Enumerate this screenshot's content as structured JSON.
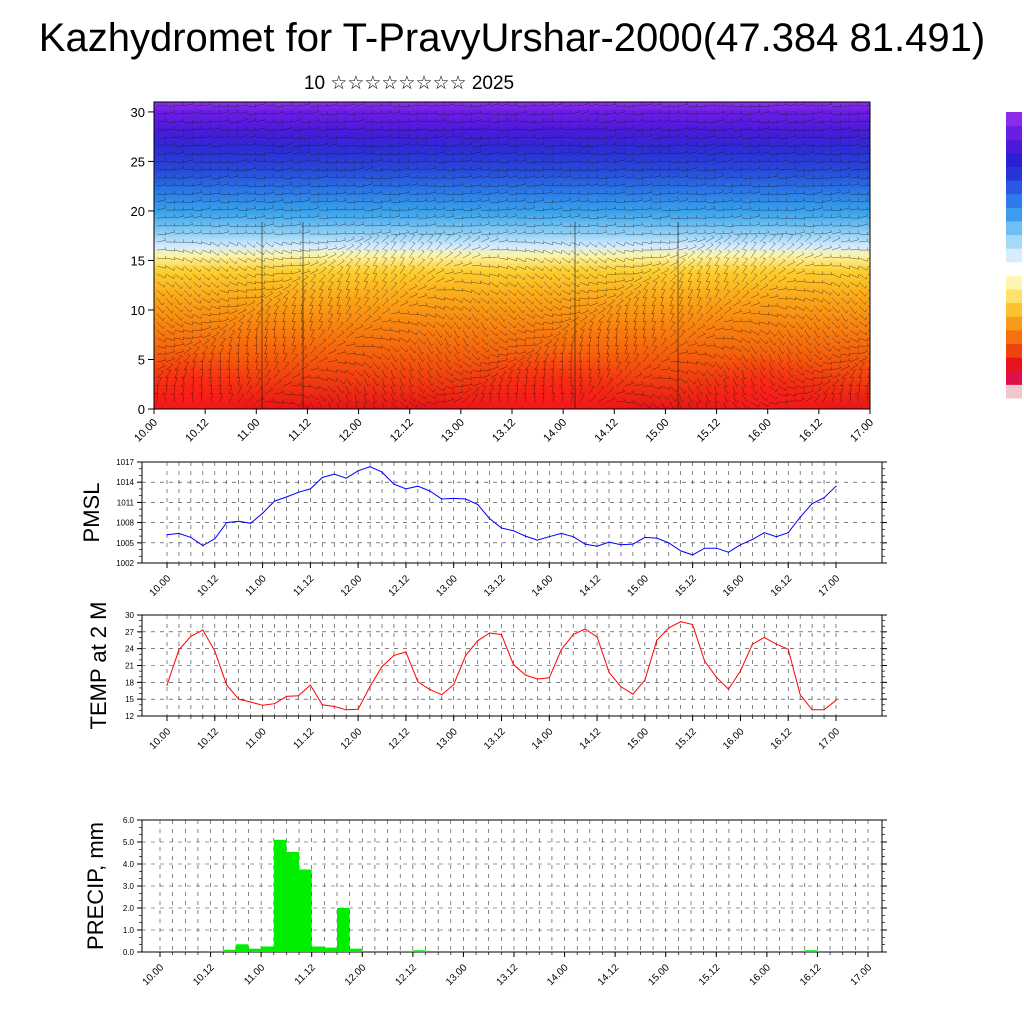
{
  "header": {
    "title": "Kazhydromet for T-PravyUrshar-2000(47.384 81.491)",
    "subtitle": "10 ☆☆☆☆☆☆☆☆ 2025"
  },
  "chart_data": [
    {
      "type": "heatmap",
      "name": "vertical-profile",
      "x_tick_labels": [
        "10.00",
        "10.12",
        "11.00",
        "11.12",
        "12.00",
        "12.12",
        "13.00",
        "13.12",
        "14.00",
        "14.12",
        "15.00",
        "15.12",
        "16.00",
        "16.12",
        "17.00"
      ],
      "y_tick_labels": [
        "0",
        "5",
        "10",
        "15",
        "20",
        "25",
        "30"
      ],
      "ylim": [
        0,
        31
      ],
      "colormap": [
        "#e8141a",
        "#f23a0f",
        "#f8650b",
        "#fa8c10",
        "#fbb01c",
        "#fbd632",
        "#fdf6a0",
        "#d6ecff",
        "#7cc9f2",
        "#34a3ec",
        "#2a78e6",
        "#2846d9",
        "#3423d6",
        "#5818e2",
        "#7a1fe8",
        "#ffffff"
      ],
      "colorbar": [
        "#8c2be8",
        "#6a1de3",
        "#4d1ad8",
        "#2a1fd0",
        "#2635d8",
        "#2a58e2",
        "#2e7ae8",
        "#3e9cef",
        "#6ec0f4",
        "#a6d9f8",
        "#d6edfb",
        "#ffffff",
        "#fdf5b0",
        "#fde26a",
        "#fbc22e",
        "#f99a18",
        "#f6700d",
        "#f0440e",
        "#e8141a",
        "#e0104a",
        "#f0c8cc"
      ]
    },
    {
      "type": "line",
      "name": "pmsl",
      "ylabel": "PMSL",
      "y_tick_labels": [
        "1002",
        "1005",
        "1008",
        "1011",
        "1014",
        "1017"
      ],
      "ylim": [
        1002,
        1017
      ],
      "x_tick_labels": [
        "10.00",
        "10.12",
        "11.00",
        "11.12",
        "12.00",
        "12.12",
        "13.00",
        "13.12",
        "14.00",
        "14.12",
        "15.00",
        "15.12",
        "16.00",
        "16.12",
        "17.00"
      ],
      "color": "#0000ff",
      "x": [
        0,
        3,
        6,
        9,
        12,
        15,
        18,
        21,
        24,
        27,
        30,
        33,
        36,
        39,
        42,
        45,
        48,
        51,
        54,
        57,
        60,
        63,
        66,
        69,
        72,
        75,
        78,
        81,
        84,
        87,
        90,
        93,
        96,
        99,
        102,
        105,
        108,
        111,
        114,
        117,
        120,
        123,
        126,
        129,
        132,
        135,
        138,
        141,
        144,
        147,
        150,
        153,
        156,
        159,
        162,
        165,
        168
      ],
      "values": [
        1006.2,
        1006.4,
        1005.8,
        1004.6,
        1005.6,
        1008.0,
        1008.2,
        1007.9,
        1009.4,
        1011.2,
        1011.8,
        1012.5,
        1013.0,
        1014.7,
        1015.2,
        1014.6,
        1015.7,
        1016.3,
        1015.5,
        1013.7,
        1013.0,
        1013.4,
        1012.7,
        1011.5,
        1011.6,
        1011.5,
        1010.7,
        1008.6,
        1007.2,
        1006.8,
        1006.0,
        1005.4,
        1005.9,
        1006.4,
        1005.9,
        1004.8,
        1004.5,
        1005.1,
        1004.7,
        1004.8,
        1005.8,
        1005.7,
        1005.0,
        1003.8,
        1003.2,
        1004.2,
        1004.2,
        1003.6,
        1004.7,
        1005.5,
        1006.5,
        1005.9,
        1006.5,
        1008.8,
        1010.8,
        1011.7,
        1013.4
      ]
    },
    {
      "type": "line",
      "name": "temp-2m",
      "ylabel": "TEMP at 2 M",
      "y_tick_labels": [
        "12",
        "15",
        "18",
        "21",
        "24",
        "27",
        "30"
      ],
      "ylim": [
        12,
        30
      ],
      "x_tick_labels": [
        "10.00",
        "10.12",
        "11.00",
        "11.12",
        "12.00",
        "12.12",
        "13.00",
        "13.12",
        "14.00",
        "14.12",
        "15.00",
        "15.12",
        "16.00",
        "16.12",
        "17.00"
      ],
      "color": "#ff0000",
      "x": [
        0,
        3,
        6,
        9,
        12,
        15,
        18,
        21,
        24,
        27,
        30,
        33,
        36,
        39,
        42,
        45,
        48,
        51,
        54,
        57,
        60,
        63,
        66,
        69,
        72,
        75,
        78,
        81,
        84,
        87,
        90,
        93,
        96,
        99,
        102,
        105,
        108,
        111,
        114,
        117,
        120,
        123,
        126,
        129,
        132,
        135,
        138,
        141,
        144,
        147,
        150,
        153,
        156,
        159,
        162,
        165,
        168
      ],
      "values": [
        17.5,
        23.8,
        26.2,
        27.3,
        23.6,
        17.5,
        15.0,
        14.5,
        13.9,
        14.2,
        15.5,
        15.6,
        17.5,
        14.0,
        13.7,
        13.1,
        13.2,
        17.3,
        20.8,
        22.8,
        23.4,
        18.1,
        16.7,
        15.8,
        17.6,
        22.8,
        25.4,
        26.8,
        26.5,
        21.2,
        19.3,
        18.6,
        18.8,
        23.8,
        26.5,
        27.5,
        26.1,
        19.8,
        17.2,
        15.9,
        18.4,
        25.5,
        27.7,
        28.8,
        28.3,
        21.8,
        18.9,
        16.8,
        20.0,
        24.8,
        26.0,
        24.8,
        23.9,
        15.8,
        13.1,
        13.1,
        14.8
      ]
    },
    {
      "type": "bar",
      "name": "precip",
      "ylabel": "PRECIP, mm",
      "y_tick_labels": [
        "0.0",
        "1.0",
        "2.0",
        "3.0",
        "4.0",
        "5.0",
        "6.0"
      ],
      "ylim": [
        0,
        6
      ],
      "x_tick_labels": [
        "10.00",
        "10.12",
        "11.00",
        "11.12",
        "12.00",
        "12.12",
        "13.00",
        "13.12",
        "14.00",
        "14.12",
        "15.00",
        "15.12",
        "16.00",
        "16.12",
        "17.00"
      ],
      "color": "#00ee00",
      "x_start": [
        0,
        3,
        6,
        9,
        12,
        15,
        18,
        21,
        24,
        27,
        30,
        33,
        36,
        39,
        42,
        45,
        48,
        51,
        54,
        57,
        60
      ],
      "values": [
        0,
        0,
        0,
        0,
        0.05,
        0.1,
        0.35,
        0.15,
        0.25,
        5.1,
        4.55,
        3.75,
        0.25,
        0.2,
        2.0,
        0.15,
        0,
        0,
        0,
        0.05,
        0.08
      ],
      "extra_bars": [
        {
          "x_start": 153,
          "value": 0.08
        }
      ]
    }
  ]
}
